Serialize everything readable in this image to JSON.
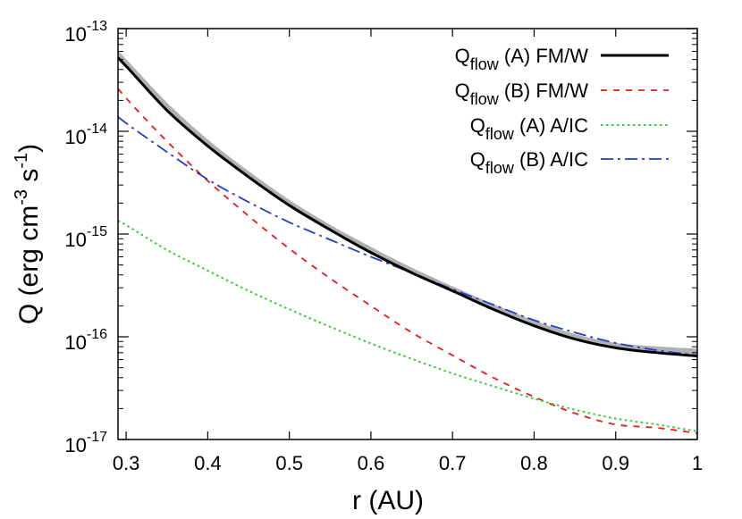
{
  "chart_data": {
    "type": "line",
    "title": "",
    "xlabel": "r (AU)",
    "ylabel": {
      "base": "Q (erg cm",
      "sup1": "-3",
      "mid": " s",
      "sup2": "-1",
      "end": ")"
    },
    "xlim": [
      0.29,
      1.0
    ],
    "ylim": [
      1e-17,
      1e-13
    ],
    "yscale": "log",
    "grid": false,
    "legend_position": "top-right",
    "x_ticks": [
      "0.3",
      "0.4",
      "0.5",
      "0.6",
      "0.7",
      "0.8",
      "0.9",
      "1"
    ],
    "x_tick_values": [
      0.3,
      0.4,
      0.5,
      0.6,
      0.7,
      0.8,
      0.9,
      1.0
    ],
    "y_ticks": [
      {
        "base": "10",
        "exp": "-13",
        "value": 1e-13
      },
      {
        "base": "10",
        "exp": "-14",
        "value": 1e-14
      },
      {
        "base": "10",
        "exp": "-15",
        "value": 1e-15
      },
      {
        "base": "10",
        "exp": "-16",
        "value": 1e-16
      },
      {
        "base": "10",
        "exp": "-17",
        "value": 1e-17
      }
    ],
    "x": [
      0.29,
      0.3,
      0.35,
      0.4,
      0.45,
      0.5,
      0.55,
      0.6,
      0.65,
      0.7,
      0.75,
      0.8,
      0.85,
      0.9,
      0.95,
      1.0
    ],
    "reference_band": {
      "color": "#b0b0b0",
      "values": [
        5.6e-14,
        4.6e-14,
        1.75e-14,
        7.7e-15,
        3.8e-15,
        2e-15,
        1.15e-15,
        7e-16,
        4.4e-16,
        2.9e-16,
        1.95e-16,
        1.35e-16,
        1e-16,
        8.2e-17,
        7.6e-17,
        7.2e-17
      ]
    },
    "series": [
      {
        "legend_main": "Q",
        "legend_sub": "flow",
        "legend_rest": " (A) FM/W",
        "color": "#000000",
        "dash": "",
        "width": 3,
        "values": [
          5.2e-14,
          4.3e-14,
          1.6e-14,
          7.2e-15,
          3.6e-15,
          1.9e-15,
          1.1e-15,
          6.6e-16,
          4.2e-16,
          2.8e-16,
          1.85e-16,
          1.28e-16,
          9.5e-17,
          7.8e-17,
          7e-17,
          6.5e-17
        ]
      },
      {
        "legend_main": "Q",
        "legend_sub": "flow",
        "legend_rest": " (B) FM/W",
        "color": "#e41a1c",
        "dash": "7,7",
        "width": 1.8,
        "values": [
          2.6e-14,
          2.1e-14,
          8e-15,
          3.3e-15,
          1.5e-15,
          7.2e-16,
          3.7e-16,
          2e-16,
          1.1e-16,
          6.6e-17,
          4e-17,
          2.6e-17,
          1.8e-17,
          1.4e-17,
          1.3e-17,
          1.15e-17
        ]
      },
      {
        "legend_main": "Q",
        "legend_sub": "flow",
        "legend_rest": " (A) A/IC",
        "color": "#33cc33",
        "dash": "2.5,3.5",
        "width": 2,
        "values": [
          1.35e-15,
          1.22e-15,
          7e-16,
          4.4e-16,
          2.8e-16,
          1.85e-16,
          1.25e-16,
          8.6e-17,
          6.1e-17,
          4.4e-17,
          3.3e-17,
          2.5e-17,
          1.95e-17,
          1.6e-17,
          1.4e-17,
          1.2e-17
        ]
      },
      {
        "legend_main": "Q",
        "legend_sub": "flow",
        "legend_rest": " (B) A/IC",
        "color": "#1f3fcc",
        "dash": "14,5,3,5",
        "width": 1.8,
        "values": [
          1.38e-14,
          1.2e-14,
          6.3e-15,
          3.4e-15,
          2.05e-15,
          1.3e-15,
          8.8e-16,
          6e-16,
          4.2e-16,
          2.9e-16,
          2.05e-16,
          1.45e-16,
          1.1e-16,
          8.7e-17,
          7.4e-17,
          6.6e-17
        ]
      }
    ]
  }
}
